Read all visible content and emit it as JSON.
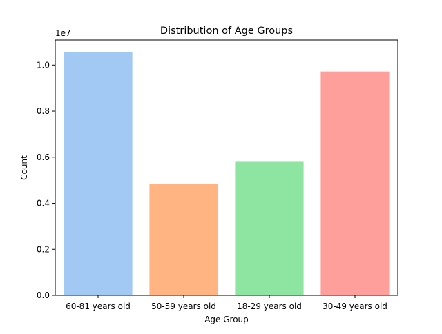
{
  "chart_data": {
    "type": "bar",
    "title": "Distribution of Age Groups",
    "xlabel": "Age Group",
    "ylabel": "Count",
    "offset_label": "1e7",
    "categories": [
      "60-81 years old",
      "50-59 years old",
      "18-29 years old",
      "30-49 years old"
    ],
    "values": [
      10560000,
      4840000,
      5800000,
      9720000
    ],
    "colors": [
      "#a1c9f4",
      "#ffb482",
      "#8de5a1",
      "#ff9f9b"
    ],
    "ylim": [
      0,
      11088000
    ],
    "yticks": [
      0,
      2000000,
      4000000,
      6000000,
      8000000,
      10000000
    ],
    "ytick_labels": [
      "0.0",
      "0.2",
      "0.4",
      "0.6",
      "0.8",
      "1.0"
    ],
    "grid": false
  }
}
